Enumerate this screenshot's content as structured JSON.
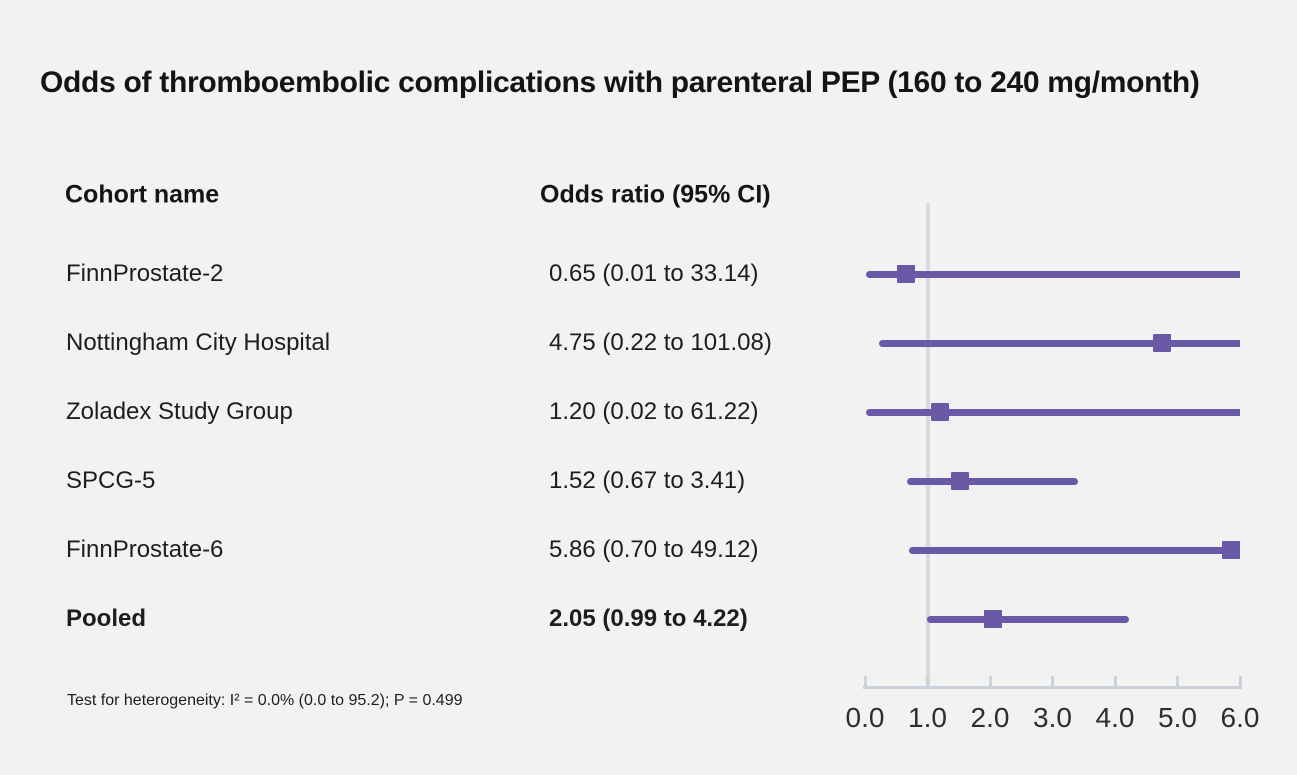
{
  "title": "Odds of thromboembolic complications with parenteral PEP (160 to 240 mg/month)",
  "columns": {
    "cohort": "Cohort name",
    "odds": "Odds ratio (95% CI)"
  },
  "footnote": "Test for heterogeneity: I² = 0.0% (0.0 to 95.2); P = 0.499",
  "colors": {
    "background": "#f2f2f2",
    "marker": "#6a59a6",
    "ci_line": "#6a59a6",
    "reference_line": "#d6dae1",
    "axis": "#ccd2da",
    "text": "#1d1d1d"
  },
  "chart_data": {
    "type": "scatter",
    "subtype": "forest-plot",
    "title": "Odds of thromboembolic complications with parenteral PEP (160 to 240 mg/month)",
    "xlabel": "",
    "ylabel": "",
    "xlim": [
      0.0,
      6.0
    ],
    "x_ticks": [
      "0.0",
      "1.0",
      "2.0",
      "3.0",
      "4.0",
      "5.0",
      "6.0"
    ],
    "x_tick_values": [
      0,
      1,
      2,
      3,
      4,
      5,
      6
    ],
    "reference_line_x": 1.0,
    "grid": false,
    "legend": "none",
    "rows": [
      {
        "name": "FinnProstate-2",
        "value_label": "0.65 (0.01 to 33.14)",
        "or": 0.65,
        "ci_low": 0.01,
        "ci_high": 33.14,
        "bold": false
      },
      {
        "name": "Nottingham City Hospital",
        "value_label": "4.75 (0.22 to 101.08)",
        "or": 4.75,
        "ci_low": 0.22,
        "ci_high": 101.08,
        "bold": false
      },
      {
        "name": "Zoladex Study Group",
        "value_label": "1.20 (0.02 to 61.22)",
        "or": 1.2,
        "ci_low": 0.02,
        "ci_high": 61.22,
        "bold": false
      },
      {
        "name": "SPCG-5",
        "value_label": "1.52 (0.67 to 3.41)",
        "or": 1.52,
        "ci_low": 0.67,
        "ci_high": 3.41,
        "bold": false
      },
      {
        "name": "FinnProstate-6",
        "value_label": "5.86 (0.70 to 49.12)",
        "or": 5.86,
        "ci_low": 0.7,
        "ci_high": 49.12,
        "bold": false
      },
      {
        "name": "Pooled",
        "value_label": "2.05 (0.99 to 4.22)",
        "or": 2.05,
        "ci_low": 0.99,
        "ci_high": 4.22,
        "bold": true
      }
    ]
  }
}
